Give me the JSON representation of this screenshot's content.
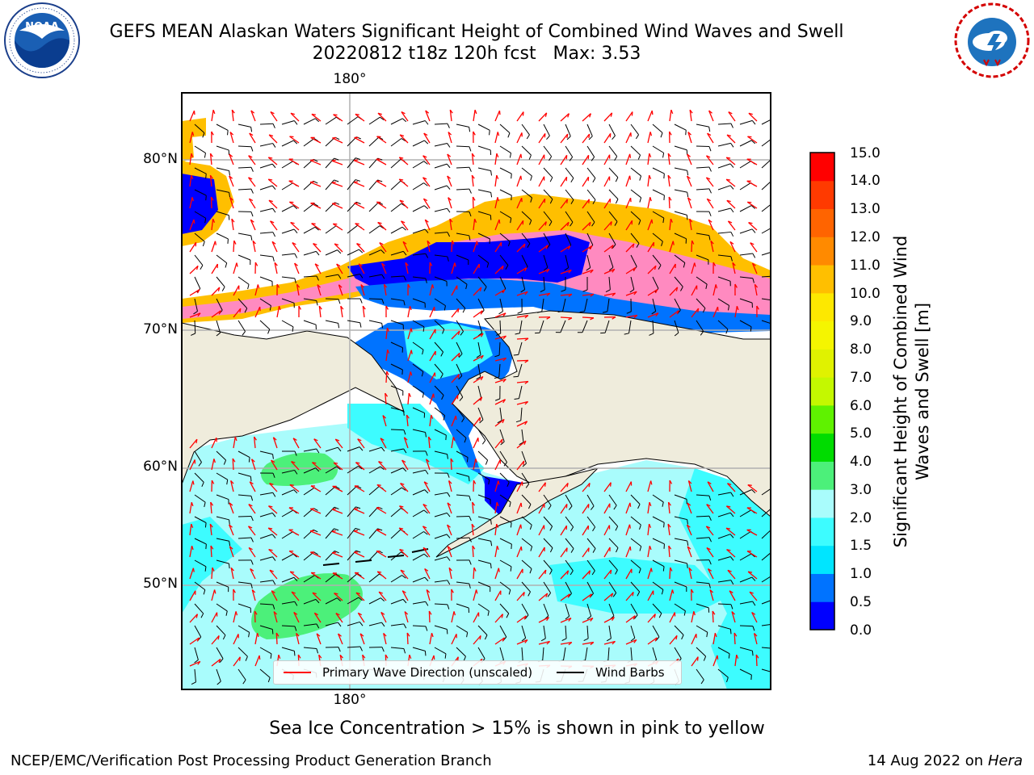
{
  "title": {
    "line1": "GEFS MEAN Alaskan Waters Significant Height of Combined Wind Waves and Swell",
    "line2": "20220812 t18z 120h fcst   Max: 3.53"
  },
  "map": {
    "lat_labels": [
      "80°N",
      "70°N",
      "60°N",
      "50°N"
    ],
    "lon_label_top": "180°",
    "lon_label_bottom": "180°",
    "grid": true,
    "colors": {
      "land": "#efecdc",
      "coast": "#000000",
      "gridline": "#b0b0b0",
      "wave_arrow": "#ff0000",
      "wind_barb": "#000000"
    }
  },
  "colorbar": {
    "label": "Significant Height of Combined Wind Waves and Swell [m]",
    "ticks": [
      "15.0",
      "14.0",
      "13.0",
      "12.0",
      "11.0",
      "10.0",
      "9.0",
      "8.0",
      "7.0",
      "6.0",
      "5.0",
      "4.0",
      "3.0",
      "2.0",
      "1.5",
      "1.0",
      "0.5",
      "0.0"
    ],
    "bins": [
      {
        "value": "0.0",
        "color": "#0000ff"
      },
      {
        "value": "0.5",
        "color": "#0073ff"
      },
      {
        "value": "1.0",
        "color": "#00e5ff"
      },
      {
        "value": "1.5",
        "color": "#3dfcff"
      },
      {
        "value": "2.0",
        "color": "#a9fcfc"
      },
      {
        "value": "3.0",
        "color": "#4cf07a"
      },
      {
        "value": "4.0",
        "color": "#00dc00"
      },
      {
        "value": "5.0",
        "color": "#5ff200"
      },
      {
        "value": "6.0",
        "color": "#c4f800"
      },
      {
        "value": "7.0",
        "color": "#e0f200"
      },
      {
        "value": "8.0",
        "color": "#f5f500"
      },
      {
        "value": "9.0",
        "color": "#fde800"
      },
      {
        "value": "10.0",
        "color": "#ffbf00"
      },
      {
        "value": "11.0",
        "color": "#ff8a00"
      },
      {
        "value": "12.0",
        "color": "#ff6400"
      },
      {
        "value": "13.0",
        "color": "#ff3a00"
      },
      {
        "value": "14.0",
        "color": "#ff0000"
      }
    ]
  },
  "legend": {
    "wave_direction_label": "Primary Wave Direction (unscaled)",
    "wind_barbs_label": "Wind Barbs"
  },
  "sea_ice_note": "Sea Ice Concentration > 15% is shown in pink to yellow",
  "footer": {
    "left": "NCEP/EMC/Verification Post Processing Product Generation Branch",
    "right_date": "14 Aug 2022 on",
    "right_host": "Hera"
  },
  "logos": {
    "noaa_text": "NOAA",
    "nws_text": "NATIONAL WEATHER SERVICE"
  }
}
